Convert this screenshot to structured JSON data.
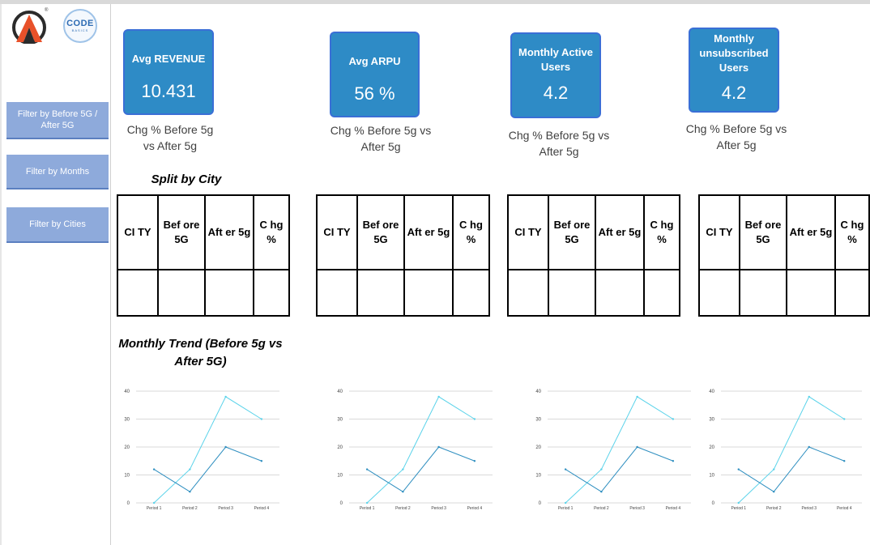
{
  "logos": {
    "brand_mark": "reg",
    "codebasics_line1": "CODE",
    "codebasics_line2": "BASICS"
  },
  "filters": [
    {
      "label": "Filter by Before 5G / After 5G"
    },
    {
      "label": "Filter by Months"
    },
    {
      "label": "Filter by Cities"
    }
  ],
  "kpis": [
    {
      "title": "Avg REVENUE",
      "value": "10.431",
      "sub": "Chg % Before 5g vs After 5g"
    },
    {
      "title": "Avg ARPU",
      "value": "56 %",
      "sub": "Chg % Before 5g vs After 5g"
    },
    {
      "title": "Monthly Active Users",
      "value": "4.2",
      "sub": "Chg % Before 5g vs After 5g"
    },
    {
      "title": "Monthly unsubscribed Users",
      "value": "4.2",
      "sub": "Chg % Before 5g vs After 5g"
    }
  ],
  "split_title": "Split by City",
  "table_headers": [
    "CI TY",
    "Bef ore 5G",
    "Aft er 5g",
    "C hg %"
  ],
  "trend_title": "Monthly Trend (Before 5g vs After 5G)",
  "colors": {
    "card": "#2e8bc6",
    "filter": "#8eaadb",
    "line_light": "#5bd3ea",
    "line_dark": "#2f8fc0"
  },
  "chart_data": [
    {
      "type": "line",
      "categories": [
        "Period 1",
        "Period 2",
        "Period 3",
        "Period 4"
      ],
      "ylim": [
        0,
        40
      ],
      "yticks": [
        0,
        10,
        20,
        30,
        40
      ],
      "series": [
        {
          "values": [
            0,
            12,
            38,
            30
          ]
        },
        {
          "values": [
            12,
            4,
            20,
            15
          ]
        }
      ]
    },
    {
      "type": "line",
      "categories": [
        "Period 1",
        "Period 2",
        "Period 3",
        "Period 4"
      ],
      "ylim": [
        0,
        40
      ],
      "yticks": [
        0,
        10,
        20,
        30,
        40
      ],
      "series": [
        {
          "values": [
            0,
            12,
            38,
            30
          ]
        },
        {
          "values": [
            12,
            4,
            20,
            15
          ]
        }
      ]
    },
    {
      "type": "line",
      "categories": [
        "Period 1",
        "Period 2",
        "Period 3",
        "Period 4"
      ],
      "ylim": [
        0,
        40
      ],
      "yticks": [
        0,
        10,
        20,
        30,
        40
      ],
      "series": [
        {
          "values": [
            0,
            12,
            38,
            30
          ]
        },
        {
          "values": [
            12,
            4,
            20,
            15
          ]
        }
      ]
    },
    {
      "type": "line",
      "categories": [
        "Period 1",
        "Period 2",
        "Period 3",
        "Period 4"
      ],
      "ylim": [
        0,
        40
      ],
      "yticks": [
        0,
        10,
        20,
        30,
        40
      ],
      "series": [
        {
          "values": [
            0,
            12,
            38,
            30
          ]
        },
        {
          "values": [
            12,
            4,
            20,
            15
          ]
        }
      ]
    }
  ]
}
